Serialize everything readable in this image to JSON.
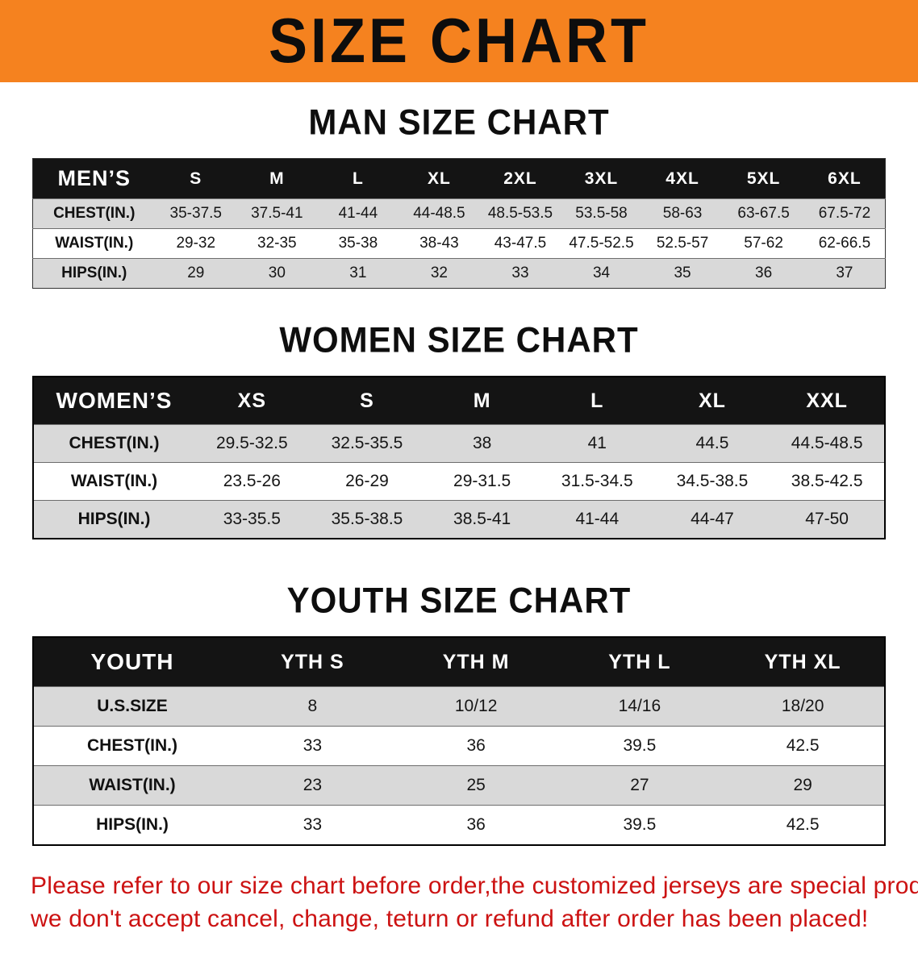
{
  "banner": {
    "title": "SIZE CHART",
    "bg_color": "#f5821f",
    "text_color": "#0d0d0d"
  },
  "men": {
    "heading": "MAN SIZE CHART",
    "header": [
      "MEN’S",
      "S",
      "M",
      "L",
      "XL",
      "2XL",
      "3XL",
      "4XL",
      "5XL",
      "6XL"
    ],
    "rows": [
      {
        "label": "CHEST(IN.)",
        "values": [
          "35-37.5",
          "37.5-41",
          "41-44",
          "44-48.5",
          "48.5-53.5",
          "53.5-58",
          "58-63",
          "63-67.5",
          "67.5-72"
        ]
      },
      {
        "label": "WAIST(IN.)",
        "values": [
          "29-32",
          "32-35",
          "35-38",
          "38-43",
          "43-47.5",
          "47.5-52.5",
          "52.5-57",
          "57-62",
          "62-66.5"
        ]
      },
      {
        "label": "HIPS(IN.)",
        "values": [
          "29",
          "30",
          "31",
          "32",
          "33",
          "34",
          "35",
          "36",
          "37"
        ]
      }
    ]
  },
  "women": {
    "heading": "WOMEN SIZE CHART",
    "header": [
      "WOMEN’S",
      "XS",
      "S",
      "M",
      "L",
      "XL",
      "XXL"
    ],
    "rows": [
      {
        "label": "CHEST(IN.)",
        "values": [
          "29.5-32.5",
          "32.5-35.5",
          "38",
          "41",
          "44.5",
          "44.5-48.5"
        ]
      },
      {
        "label": "WAIST(IN.)",
        "values": [
          "23.5-26",
          "26-29",
          "29-31.5",
          "31.5-34.5",
          "34.5-38.5",
          "38.5-42.5"
        ]
      },
      {
        "label": "HIPS(IN.)",
        "values": [
          "33-35.5",
          "35.5-38.5",
          "38.5-41",
          "41-44",
          "44-47",
          "47-50"
        ]
      }
    ]
  },
  "youth": {
    "heading": "YOUTH SIZE CHART",
    "header": [
      "YOUTH",
      "YTH S",
      "YTH M",
      "YTH L",
      "YTH XL"
    ],
    "rows": [
      {
        "label": "U.S.SIZE",
        "values": [
          "8",
          "10/12",
          "14/16",
          "18/20"
        ]
      },
      {
        "label": "CHEST(IN.)",
        "values": [
          "33",
          "36",
          "39.5",
          "42.5"
        ]
      },
      {
        "label": "WAIST(IN.)",
        "values": [
          "23",
          "25",
          "27",
          "29"
        ]
      },
      {
        "label": "HIPS(IN.)",
        "values": [
          "33",
          "36",
          "39.5",
          "42.5"
        ]
      }
    ]
  },
  "disclaimer": {
    "line1": "Please refer to our size chart before order,the customized jerseys are special products,",
    "line2": "we don't accept cancel, change, teturn or refund after order has been placed!",
    "color": "#cc1212"
  }
}
